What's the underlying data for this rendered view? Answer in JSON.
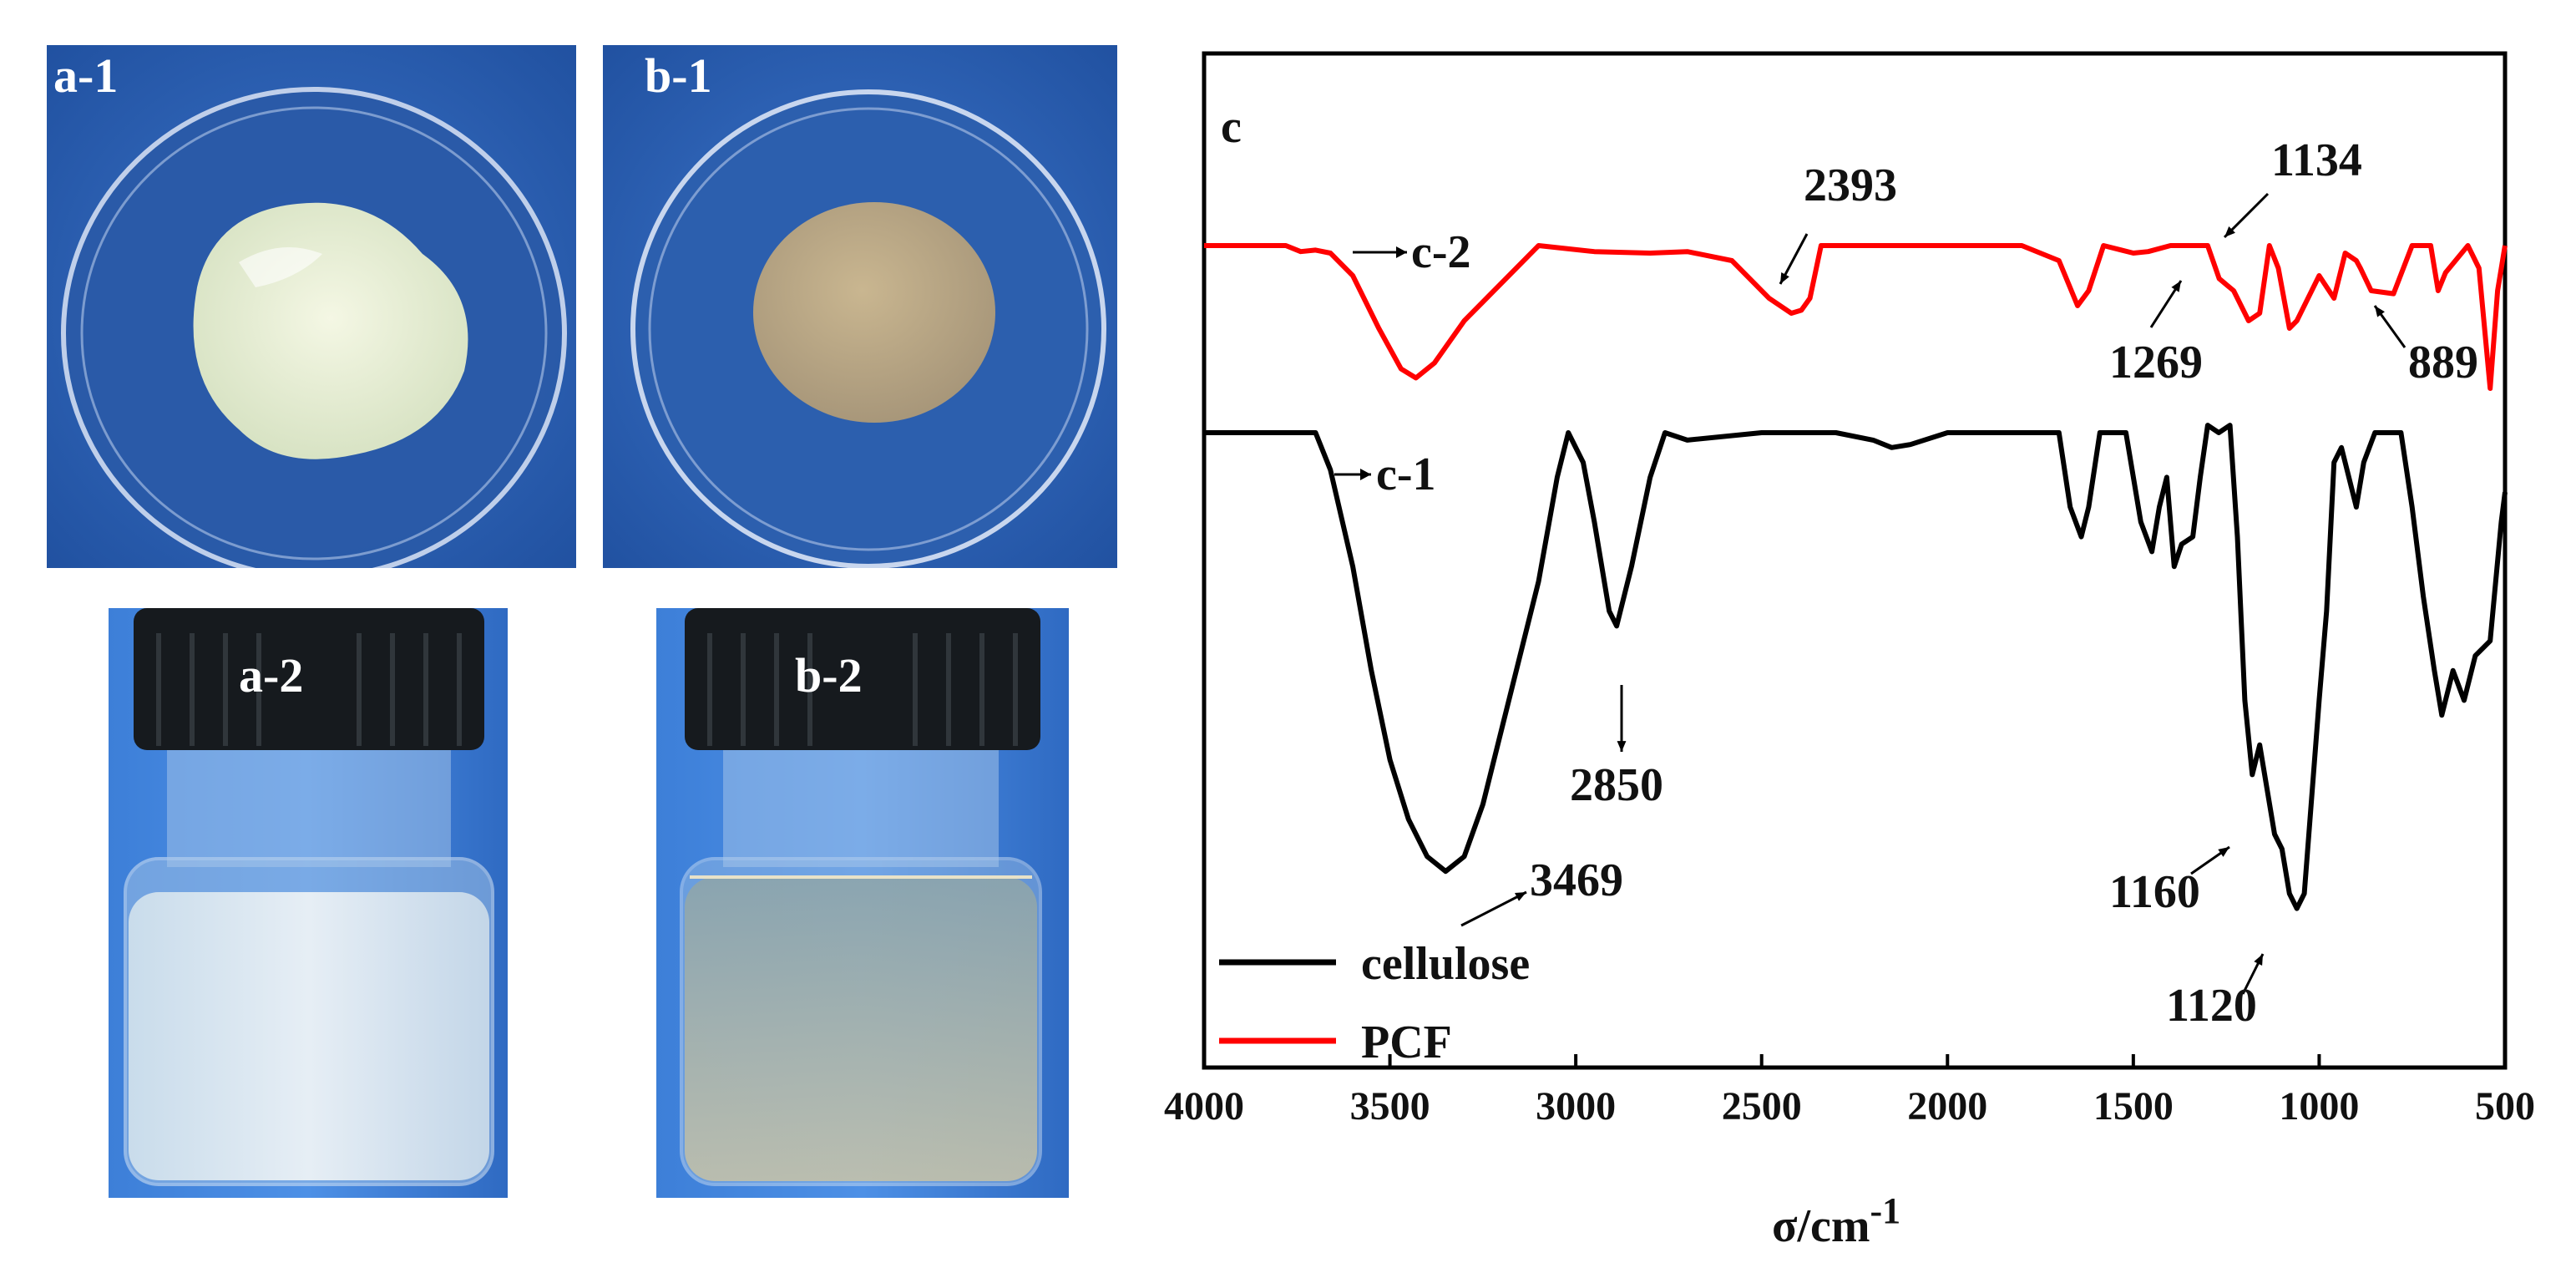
{
  "photos": {
    "a1": {
      "label": "a-1"
    },
    "b1": {
      "label": "b-1"
    },
    "a2": {
      "label": "a-2"
    },
    "b2": {
      "label": "b-2"
    }
  },
  "colors": {
    "cellulose": "#000000",
    "pcf": "#ff0000",
    "photo_bg": "#2f63b8"
  },
  "chart_data": {
    "type": "line",
    "panel_label": "c",
    "xlabel": "σ/cm",
    "xlabel_sup": "-1",
    "ylabel": "",
    "xlim": [
      4000,
      500
    ],
    "xticks": [
      4000,
      3500,
      3000,
      2500,
      2000,
      1500,
      1000,
      500
    ],
    "x_reversed": true,
    "legend": {
      "placement": "bottom-left",
      "entries": [
        "cellulose",
        "PCF"
      ]
    },
    "curve_tags": [
      {
        "text": "c-2",
        "series": "PCF"
      },
      {
        "text": "c-1",
        "series": "cellulose"
      }
    ],
    "series": [
      {
        "name": "PCF",
        "color": "#ff0000",
        "points": [
          [
            4000,
            0
          ],
          [
            3780,
            0
          ],
          [
            3740,
            -0.04
          ],
          [
            3700,
            -0.03
          ],
          [
            3660,
            -0.05
          ],
          [
            3600,
            -0.2
          ],
          [
            3530,
            -0.55
          ],
          [
            3470,
            -0.82
          ],
          [
            3430,
            -0.88
          ],
          [
            3380,
            -0.78
          ],
          [
            3300,
            -0.5
          ],
          [
            3200,
            -0.25
          ],
          [
            3100,
            0
          ],
          [
            2950,
            -0.04
          ],
          [
            2800,
            -0.05
          ],
          [
            2700,
            -0.04
          ],
          [
            2580,
            -0.1
          ],
          [
            2480,
            -0.35
          ],
          [
            2420,
            -0.45
          ],
          [
            2393,
            -0.43
          ],
          [
            2370,
            -0.35
          ],
          [
            2340,
            0
          ],
          [
            1800,
            0
          ],
          [
            1700,
            -0.1
          ],
          [
            1650,
            -0.4
          ],
          [
            1620,
            -0.3
          ],
          [
            1580,
            0
          ],
          [
            1500,
            -0.05
          ],
          [
            1460,
            -0.04
          ],
          [
            1400,
            0
          ],
          [
            1300,
            0
          ],
          [
            1269,
            -0.22
          ],
          [
            1230,
            -0.3
          ],
          [
            1190,
            -0.5
          ],
          [
            1160,
            -0.45
          ],
          [
            1134,
            0
          ],
          [
            1110,
            -0.15
          ],
          [
            1080,
            -0.55
          ],
          [
            1060,
            -0.5
          ],
          [
            1000,
            -0.2
          ],
          [
            960,
            -0.35
          ],
          [
            930,
            -0.05
          ],
          [
            900,
            -0.1
          ],
          [
            889,
            -0.15
          ],
          [
            860,
            -0.3
          ],
          [
            800,
            -0.32
          ],
          [
            750,
            0
          ],
          [
            700,
            0
          ],
          [
            680,
            -0.3
          ],
          [
            660,
            -0.18
          ],
          [
            600,
            0
          ],
          [
            570,
            -0.15
          ],
          [
            540,
            -0.95
          ],
          [
            520,
            -0.3
          ],
          [
            500,
            0
          ]
        ]
      },
      {
        "name": "cellulose",
        "color": "#000000",
        "points": [
          [
            4000,
            0
          ],
          [
            3700,
            0
          ],
          [
            3660,
            -0.25
          ],
          [
            3600,
            -0.9
          ],
          [
            3550,
            -1.6
          ],
          [
            3500,
            -2.2
          ],
          [
            3450,
            -2.6
          ],
          [
            3400,
            -2.85
          ],
          [
            3350,
            -2.95
          ],
          [
            3300,
            -2.85
          ],
          [
            3250,
            -2.5
          ],
          [
            3200,
            -2.0
          ],
          [
            3100,
            -1.0
          ],
          [
            3050,
            -0.3
          ],
          [
            3020,
            0
          ],
          [
            2980,
            -0.2
          ],
          [
            2950,
            -0.6
          ],
          [
            2910,
            -1.2
          ],
          [
            2890,
            -1.3
          ],
          [
            2850,
            -0.9
          ],
          [
            2800,
            -0.3
          ],
          [
            2760,
            0
          ],
          [
            2700,
            -0.05
          ],
          [
            2500,
            0
          ],
          [
            2300,
            0
          ],
          [
            2200,
            -0.05
          ],
          [
            2150,
            -0.1
          ],
          [
            2100,
            -0.08
          ],
          [
            2000,
            0
          ],
          [
            1700,
            0
          ],
          [
            1670,
            -0.5
          ],
          [
            1640,
            -0.7
          ],
          [
            1620,
            -0.5
          ],
          [
            1590,
            0
          ],
          [
            1520,
            0
          ],
          [
            1480,
            -0.6
          ],
          [
            1450,
            -0.8
          ],
          [
            1430,
            -0.5
          ],
          [
            1410,
            -0.3
          ],
          [
            1390,
            -0.9
          ],
          [
            1370,
            -0.75
          ],
          [
            1340,
            -0.7
          ],
          [
            1320,
            -0.3
          ],
          [
            1300,
            0.05
          ],
          [
            1270,
            0
          ],
          [
            1240,
            0.05
          ],
          [
            1220,
            -0.7
          ],
          [
            1200,
            -1.8
          ],
          [
            1180,
            -2.3
          ],
          [
            1160,
            -2.1
          ],
          [
            1140,
            -2.4
          ],
          [
            1120,
            -2.7
          ],
          [
            1100,
            -2.8
          ],
          [
            1080,
            -3.1
          ],
          [
            1060,
            -3.2
          ],
          [
            1040,
            -3.1
          ],
          [
            1000,
            -1.8
          ],
          [
            980,
            -1.2
          ],
          [
            960,
            -0.2
          ],
          [
            940,
            -0.1
          ],
          [
            900,
            -0.5
          ],
          [
            880,
            -0.2
          ],
          [
            850,
            0
          ],
          [
            780,
            0
          ],
          [
            750,
            -0.5
          ],
          [
            720,
            -1.1
          ],
          [
            690,
            -1.6
          ],
          [
            670,
            -1.9
          ],
          [
            640,
            -1.6
          ],
          [
            610,
            -1.8
          ],
          [
            580,
            -1.5
          ],
          [
            540,
            -1.4
          ],
          [
            510,
            -0.6
          ],
          [
            500,
            -0.4
          ]
        ]
      }
    ],
    "annotations": [
      {
        "text": "2393",
        "series": "PCF"
      },
      {
        "text": "1134",
        "series": "PCF"
      },
      {
        "text": "1269",
        "series": "PCF"
      },
      {
        "text": "889",
        "series": "PCF"
      },
      {
        "text": "2850",
        "series": "cellulose"
      },
      {
        "text": "3469",
        "series": "cellulose"
      },
      {
        "text": "1160",
        "series": "cellulose"
      },
      {
        "text": "1120",
        "series": "cellulose"
      }
    ]
  }
}
